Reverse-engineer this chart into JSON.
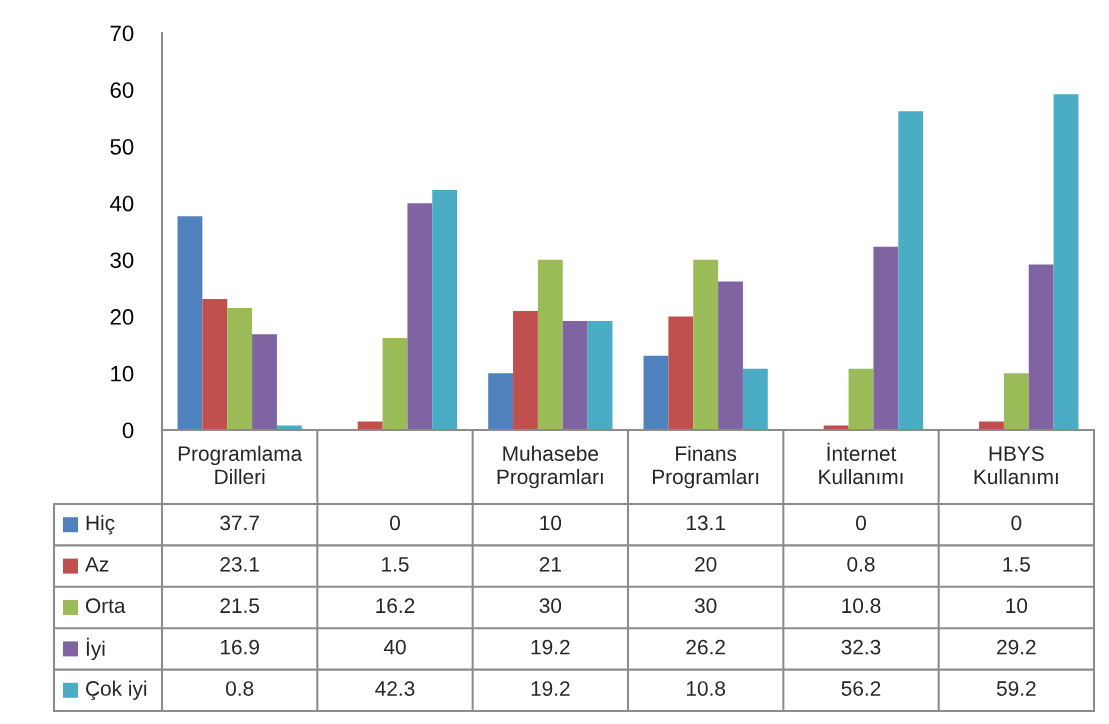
{
  "chart_data": {
    "type": "bar",
    "categories": [
      "Programlama Dilleri",
      null,
      "Muhasebe Programları",
      "Finans Programları",
      "İnternet Kullanımı",
      "HBYS Kullanımı"
    ],
    "series": [
      {
        "name": "Hiç",
        "color": "#4f81bd",
        "values": [
          37.7,
          0,
          10,
          13.1,
          0,
          0
        ]
      },
      {
        "name": "Az",
        "color": "#c0504d",
        "values": [
          23.1,
          1.5,
          21,
          20,
          0.8,
          1.5
        ]
      },
      {
        "name": "Orta",
        "color": "#9bbb59",
        "values": [
          21.5,
          16.2,
          30,
          30,
          10.8,
          10
        ]
      },
      {
        "name": "İyi",
        "color": "#8064a2",
        "values": [
          16.9,
          40,
          19.2,
          26.2,
          32.3,
          29.2
        ]
      },
      {
        "name": "Çok iyi",
        "color": "#4bacc6",
        "values": [
          0.8,
          42.3,
          19.2,
          10.8,
          56.2,
          59.2
        ]
      }
    ],
    "ylim": [
      0,
      70
    ],
    "yticks": [
      0,
      10,
      20,
      30,
      40,
      50,
      60,
      70
    ],
    "data_labels": true,
    "legend": "bottom"
  }
}
